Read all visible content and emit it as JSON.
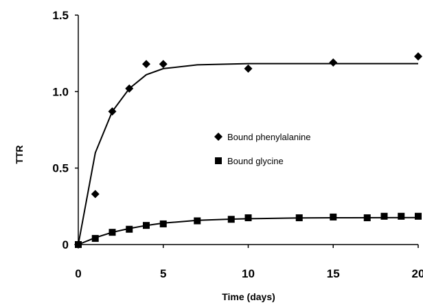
{
  "chart_data": {
    "type": "scatter",
    "xlabel": "Time (days)",
    "ylabel": "TTR",
    "xlim": [
      0,
      20
    ],
    "ylim": [
      0,
      1.5
    ],
    "xticks": [
      "0",
      "5",
      "10",
      "15",
      "20"
    ],
    "xtick_values": [
      0,
      5,
      10,
      15,
      20
    ],
    "yticks": [
      "0",
      "0.5",
      "1.0",
      "1.5"
    ],
    "ytick_values": [
      0,
      0.5,
      1.0,
      1.5
    ],
    "grid": false,
    "legend_position": "center-right",
    "series": [
      {
        "name": "Bound phenylalanine",
        "marker": "diamond",
        "color": "#000000",
        "x": [
          0,
          1,
          2,
          3,
          4,
          5,
          10,
          15,
          20
        ],
        "y": [
          0.0,
          0.33,
          0.87,
          1.02,
          1.18,
          1.18,
          1.15,
          1.19,
          1.23
        ],
        "fit_x": [
          0,
          1,
          2,
          3,
          4,
          5,
          7,
          10,
          15,
          20
        ],
        "fit_y": [
          0.0,
          0.6,
          0.87,
          1.02,
          1.11,
          1.15,
          1.175,
          1.183,
          1.183,
          1.183
        ]
      },
      {
        "name": "Bound glycine",
        "marker": "square",
        "color": "#000000",
        "x": [
          0,
          1,
          2,
          3,
          4,
          5,
          7,
          9,
          10,
          13,
          15,
          17,
          18,
          19,
          20
        ],
        "y": [
          0.0,
          0.04,
          0.08,
          0.1,
          0.125,
          0.135,
          0.155,
          0.165,
          0.175,
          0.175,
          0.18,
          0.175,
          0.185,
          0.185,
          0.185
        ],
        "fit_x": [
          0,
          1,
          2,
          3,
          4,
          5,
          7,
          9,
          10,
          13,
          15,
          20
        ],
        "fit_y": [
          0.0,
          0.045,
          0.08,
          0.105,
          0.125,
          0.14,
          0.158,
          0.166,
          0.169,
          0.174,
          0.175,
          0.176
        ]
      }
    ]
  }
}
